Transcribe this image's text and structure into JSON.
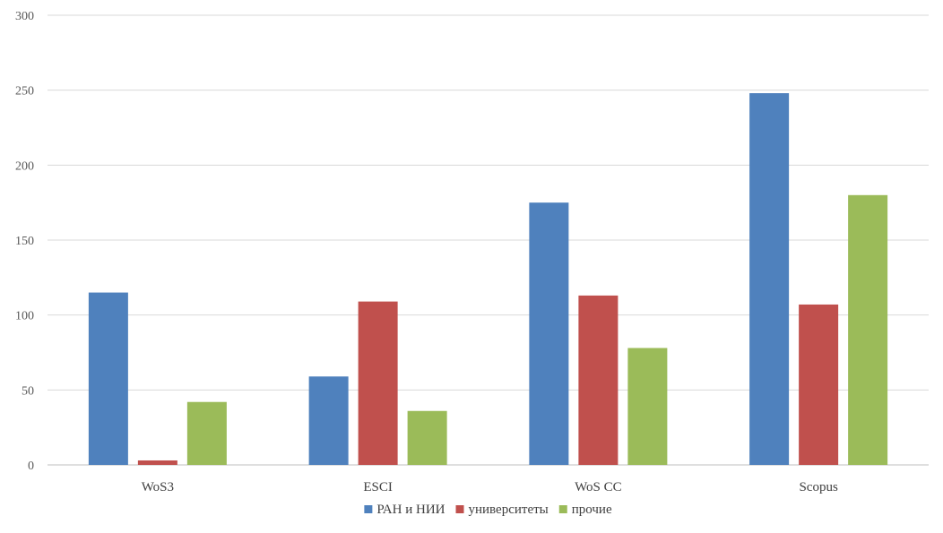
{
  "chart_data": {
    "type": "bar",
    "categories": [
      "WoS3",
      "ESCI",
      "WoS CC",
      "Scopus"
    ],
    "series": [
      {
        "name": "РАН и НИИ",
        "values": [
          115,
          59,
          175,
          248
        ],
        "color": "#4F81BD"
      },
      {
        "name": "университеты",
        "values": [
          3,
          109,
          113,
          107
        ],
        "color": "#C0504D"
      },
      {
        "name": "прочие",
        "values": [
          42,
          36,
          78,
          180
        ],
        "color": "#9BBB59"
      }
    ],
    "ylim": [
      0,
      300
    ],
    "yticks": [
      0,
      50,
      100,
      150,
      200,
      250,
      300
    ],
    "grid": true,
    "legend_position": "bottom-center"
  }
}
